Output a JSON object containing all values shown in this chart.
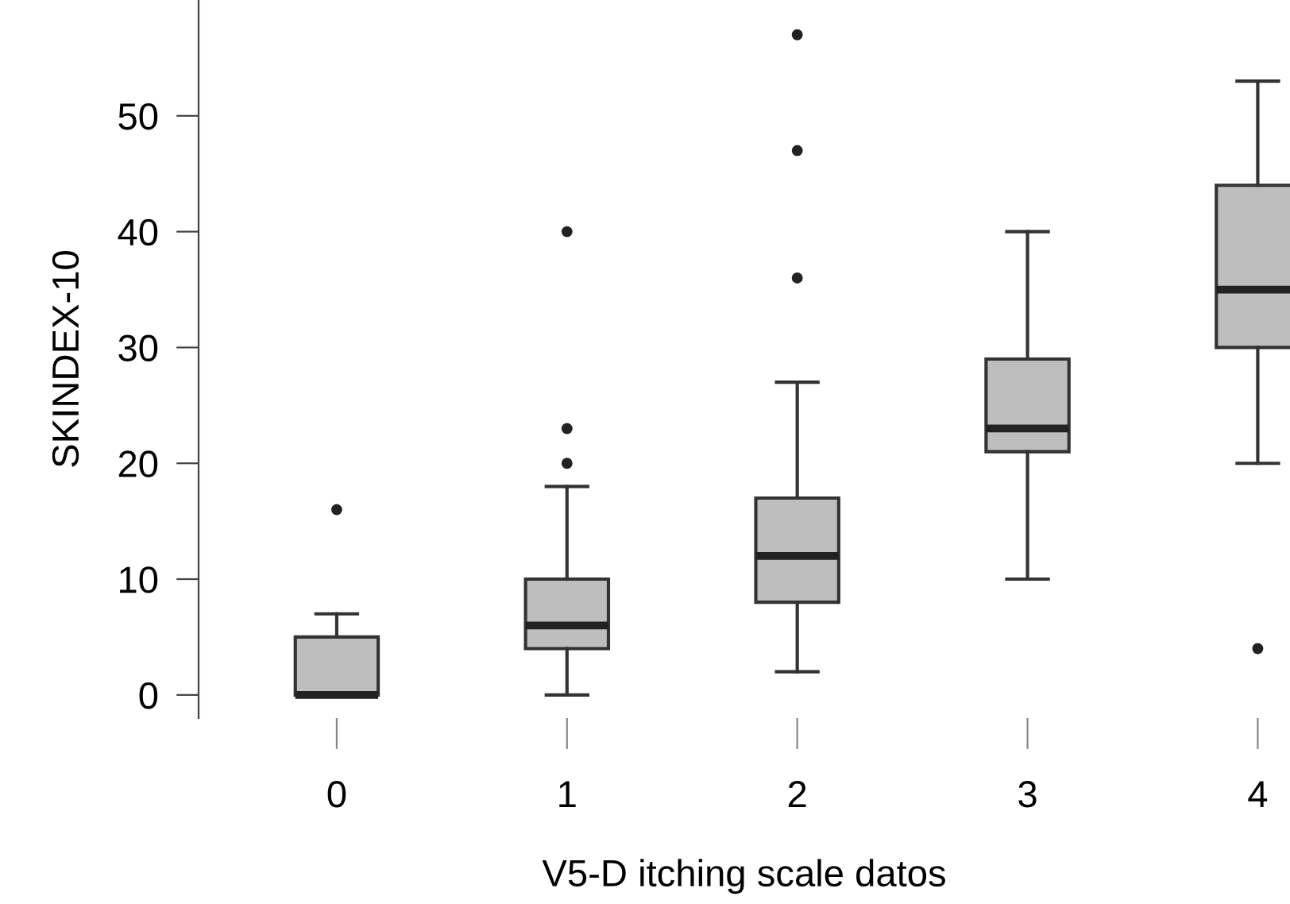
{
  "chart_data": {
    "type": "box",
    "xlabel": "V5-D itching scale datos",
    "ylabel": "SKINDEX-10",
    "categories": [
      "0",
      "1",
      "2",
      "3",
      "4"
    ],
    "color": "#bebebe",
    "ylim": [
      -2,
      60
    ],
    "yticks": [
      0,
      10,
      20,
      30,
      40,
      50
    ],
    "grid": false,
    "boxes": [
      {
        "low": 0,
        "q1": 0,
        "median": 0,
        "q3": 5,
        "high": 7,
        "outliers": [
          16
        ]
      },
      {
        "low": 0,
        "q1": 4,
        "median": 6,
        "q3": 10,
        "high": 18,
        "outliers": [
          20,
          23,
          40
        ]
      },
      {
        "low": 2,
        "q1": 8,
        "median": 12,
        "q3": 17,
        "high": 27,
        "outliers": [
          36,
          47,
          57
        ]
      },
      {
        "low": 10,
        "q1": 21,
        "median": 23,
        "q3": 29,
        "high": 40
      },
      {
        "low": 20,
        "q1": 30,
        "median": 35,
        "q3": 44,
        "high": 53,
        "outliers": [
          4
        ]
      }
    ]
  }
}
